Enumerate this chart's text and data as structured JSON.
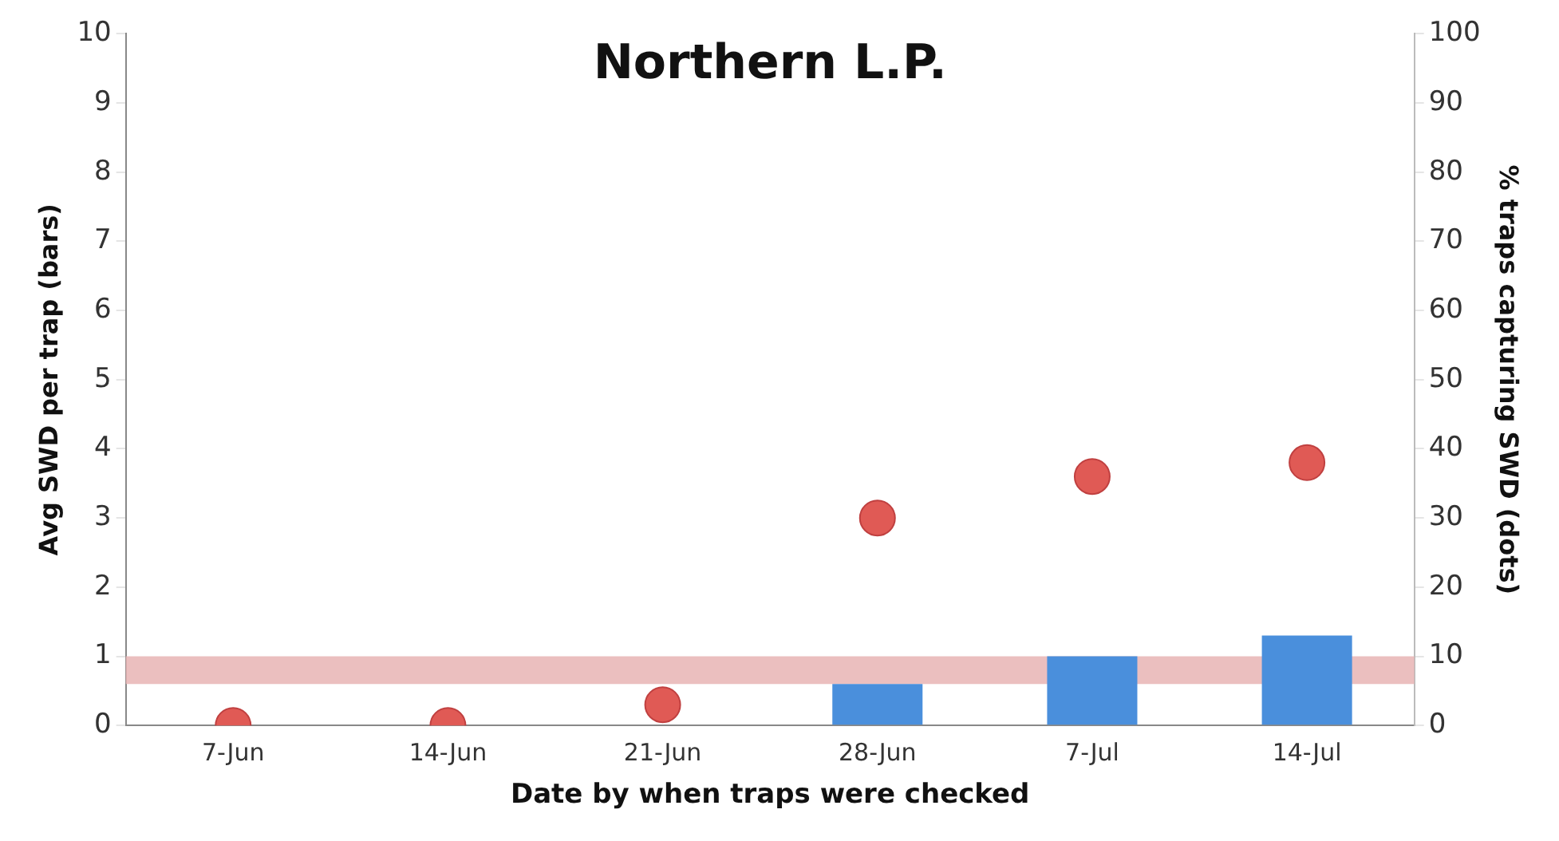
{
  "chart_data": {
    "type": "bar",
    "title": "Northern L.P.",
    "xlabel": "Date by when traps were checked",
    "ylabel": "Avg SWD per trap (bars)",
    "y2label": "% traps capturing SWD (dots)",
    "categories": [
      "7-Jun",
      "14-Jun",
      "21-Jun",
      "28-Jun",
      "7-Jul",
      "14-Jul"
    ],
    "series": [
      {
        "color": "#4a8fdc",
        "values": [
          0,
          0,
          0,
          0.6,
          1.0,
          1.3
        ]
      },
      {
        "type": "scatter",
        "axis": "y2",
        "color": "#e05a55",
        "values": [
          0,
          0,
          3,
          30,
          36,
          38
        ]
      }
    ],
    "ylim": [
      0,
      10
    ],
    "yticks": [
      0,
      1,
      2,
      3,
      4,
      5,
      6,
      7,
      8,
      9,
      10
    ],
    "y2lim": [
      0,
      100
    ],
    "y2ticks": [
      0,
      10,
      20,
      30,
      40,
      50,
      60,
      70,
      80,
      90,
      100
    ],
    "bands": [
      {
        "axis": "y",
        "from": 0.6,
        "to": 1.0,
        "color": "#e8b4b4"
      }
    ],
    "grid": false,
    "legend": false,
    "marker": "circle"
  }
}
